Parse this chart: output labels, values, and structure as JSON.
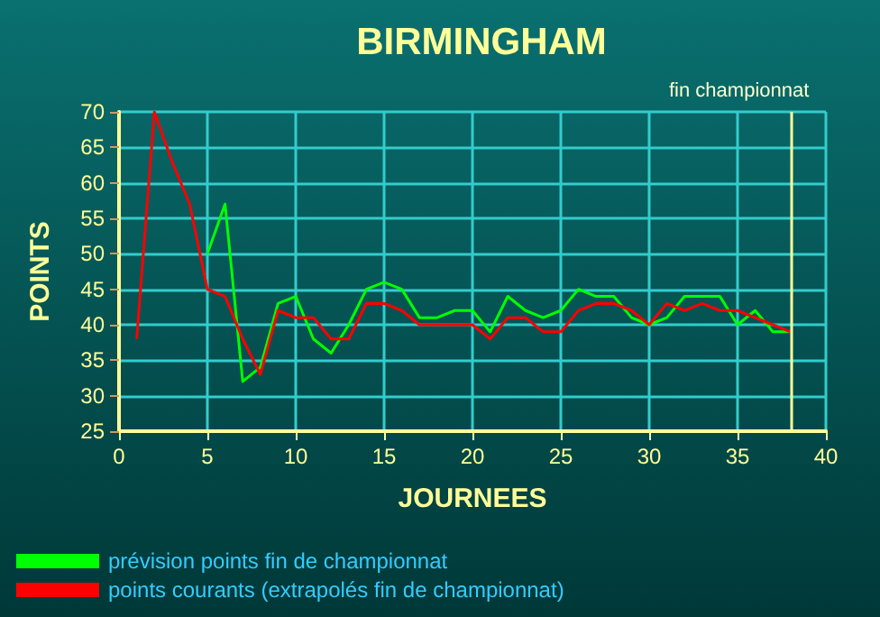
{
  "chart_data": {
    "type": "line",
    "title": "BIRMINGHAM",
    "subtitle": "fin championnat",
    "xlabel": "JOURNEES",
    "ylabel": "POINTS",
    "x": [
      1,
      2,
      3,
      4,
      5,
      6,
      7,
      8,
      9,
      10,
      11,
      12,
      13,
      14,
      15,
      16,
      17,
      18,
      19,
      20,
      21,
      22,
      23,
      24,
      25,
      26,
      27,
      28,
      29,
      30,
      31,
      32,
      33,
      34,
      35,
      36,
      37,
      38
    ],
    "series": [
      {
        "name": "prévision points fin de championnat",
        "color": "#00ff00",
        "values": [
          null,
          null,
          null,
          null,
          50,
          57,
          32,
          34,
          43,
          44,
          38,
          36,
          40,
          45,
          46,
          45,
          41,
          41,
          42,
          42,
          39,
          44,
          42,
          41,
          42,
          45,
          44,
          44,
          41,
          40,
          41,
          44,
          44,
          44,
          40,
          42,
          39,
          39
        ]
      },
      {
        "name": "points courants (extrapolés fin de championnat)",
        "color": "#ff0000",
        "values": [
          38,
          70,
          63,
          57,
          45,
          44,
          38,
          33,
          42,
          41,
          41,
          38,
          38,
          43,
          43,
          42,
          40,
          40,
          40,
          40,
          38,
          41,
          41,
          39,
          39,
          42,
          43,
          43,
          42,
          40,
          43,
          42,
          43,
          42,
          42,
          41,
          40,
          39
        ]
      }
    ],
    "xlim": [
      0,
      40
    ],
    "xticks": [
      0,
      5,
      10,
      15,
      20,
      25,
      30,
      35,
      40
    ],
    "ylim": [
      25,
      70
    ],
    "yticks": [
      25,
      30,
      35,
      40,
      45,
      50,
      55,
      60,
      65,
      70
    ],
    "grid": true,
    "legend": "bottom left",
    "ref_lines": [
      {
        "axis": "x",
        "value": 38,
        "color": "#ffff99"
      }
    ]
  }
}
